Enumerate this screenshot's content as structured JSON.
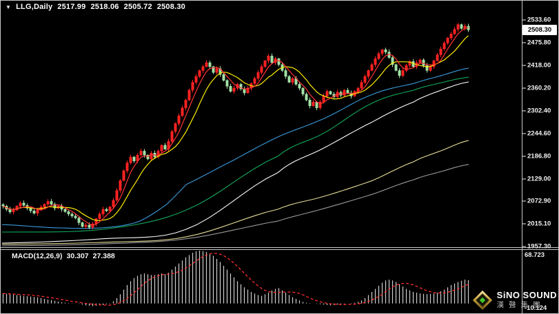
{
  "header": {
    "collapse_icon": "▼",
    "symbol_timeframe": "LLG,Daily"
  },
  "indicator_label": {
    "name": "MACD(12,26,9)",
    "main_value": "30.307",
    "signal_value": "27.388"
  },
  "price_axis": {
    "current_price": "2508.30",
    "labels": [
      "2533.60",
      "2475.80",
      "2418.00",
      "2360.20",
      "2302.40",
      "2244.60",
      "2186.80",
      "2129.00",
      "2072.90",
      "2015.10",
      "1957.30"
    ]
  },
  "macd_axis": {
    "max_label": "68.723",
    "min_label": "-10.124"
  },
  "logo": {
    "line1": "SiNO SOUND",
    "line2": "漢聲集團"
  },
  "colors": {
    "background": "#000000",
    "frame": "#c8c8c8",
    "bull_candle": "#ff2222",
    "bear_candle": "#a2e2a6",
    "ma5": "#ff3535",
    "ma10": "#ffee00",
    "ma_blue": "#3a9bdc",
    "ma_green": "#12aa5c",
    "ma_white": "#ffffff",
    "ma_khaki": "#e9dd96",
    "ma_gray": "#9a9a9a",
    "macd_hist": "#d0d0d0",
    "macd_signal": "#ff2d2d",
    "current_price_bg": "#ffffff"
  },
  "chart_data": {
    "type": "candlestick+macd",
    "symbol": "LLG",
    "timeframe": "Daily",
    "ohlc_header": {
      "open": "2517.99",
      "high": "2518.06",
      "low": "2505.72",
      "close": "2508.30"
    },
    "price_axis_ticks": [
      2533.6,
      2475.8,
      2418.0,
      2360.2,
      2302.4,
      2244.6,
      2186.8,
      2129.0,
      2072.9,
      2015.1,
      1957.3
    ],
    "price_range_visible": [
      1957.3,
      2533.6
    ],
    "macd_range_visible": [
      -10.124,
      68.723
    ],
    "macd_settings": "12,26,9",
    "closes": [
      2060,
      2052,
      2045,
      2050,
      2060,
      2068,
      2062,
      2055,
      2048,
      2042,
      2050,
      2058,
      2065,
      2072,
      2065,
      2055,
      2060,
      2052,
      2046,
      2040,
      2035,
      2030,
      2018,
      2008,
      2012,
      2006,
      2015,
      2028,
      2040,
      2052,
      2048,
      2058,
      2075,
      2100,
      2125,
      2150,
      2170,
      2185,
      2175,
      2190,
      2200,
      2190,
      2180,
      2195,
      2185,
      2200,
      2215,
      2205,
      2225,
      2250,
      2270,
      2290,
      2310,
      2330,
      2355,
      2375,
      2390,
      2405,
      2415,
      2425,
      2415,
      2400,
      2410,
      2395,
      2380,
      2365,
      2352,
      2360,
      2370,
      2358,
      2348,
      2360,
      2372,
      2385,
      2400,
      2415,
      2430,
      2442,
      2425,
      2435,
      2420,
      2405,
      2390,
      2375,
      2385,
      2370,
      2360,
      2345,
      2330,
      2315,
      2325,
      2310,
      2325,
      2340,
      2352,
      2345,
      2338,
      2350,
      2342,
      2355,
      2348,
      2340,
      2352,
      2360,
      2375,
      2390,
      2405,
      2420,
      2435,
      2448,
      2458,
      2452,
      2438,
      2420,
      2405,
      2392,
      2405,
      2418,
      2428,
      2415,
      2425,
      2432,
      2418,
      2405,
      2415,
      2430,
      2445,
      2460,
      2475,
      2488,
      2498,
      2510,
      2522,
      2512,
      2518,
      2508.3
    ],
    "macd_hist": [
      13,
      12.5,
      12,
      11.5,
      11,
      10.5,
      10,
      9.5,
      9,
      8.5,
      8,
      7,
      6,
      5,
      4.5,
      3.5,
      2.5,
      1.5,
      1,
      0.5,
      0.3,
      0.2,
      -0.5,
      -1.5,
      -2.5,
      -3,
      -3.5,
      -3,
      -2.5,
      -2,
      -1,
      0.5,
      3,
      7,
      12,
      18,
      24,
      29,
      33,
      36,
      38,
      39,
      38,
      37,
      37,
      38,
      39,
      38,
      40,
      44,
      48,
      52,
      56,
      60,
      63,
      66,
      68,
      68.7,
      68,
      67,
      65,
      62,
      58,
      54,
      49,
      44,
      39,
      34,
      29,
      25,
      21,
      18,
      15,
      13,
      11,
      10,
      12,
      14,
      17,
      19,
      20,
      17,
      14,
      11,
      8,
      6,
      4,
      2,
      1,
      0.5,
      0,
      -0.5,
      -1,
      -1.5,
      -2,
      -2.5,
      -2,
      -1.5,
      -1,
      -0.5,
      0,
      0.5,
      1,
      2,
      4,
      7,
      11,
      15,
      19,
      23,
      27,
      30,
      31,
      30,
      28,
      25,
      22,
      19,
      17,
      15,
      14,
      13,
      12.5,
      12,
      12.5,
      13,
      14,
      16,
      18,
      21,
      24,
      26,
      28,
      29.5,
      31,
      30.307
    ],
    "overlays": {
      "ma5": {
        "color": "#ff3535",
        "computed": "sma",
        "period": 5
      },
      "ma10": {
        "color": "#ffee00",
        "computed": "sma",
        "period": 10
      },
      "ma_blue": {
        "color": "#3a9bdc",
        "x": [
          3,
          80,
          150,
          200,
          240,
          270,
          340,
          403,
          470,
          540,
          600,
          640,
          680
        ],
        "price": [
          2013,
          2005,
          2005,
          2020,
          2062,
          2115,
          2178,
          2236,
          2283,
          2344,
          2372,
          2392,
          2411
        ]
      },
      "ma_green": {
        "color": "#12aa5c",
        "x": [
          3,
          150,
          270,
          403,
          470,
          540,
          600,
          640,
          680
        ],
        "price": [
          1994,
          2001,
          2050,
          2187,
          2246,
          2322,
          2355,
          2374,
          2388
        ]
      },
      "ma_white": {
        "color": "#ffffff",
        "x": [
          3,
          150,
          270,
          403,
          470,
          540,
          600,
          640,
          680
        ],
        "price": [
          1966,
          1977,
          2001,
          2145,
          2208,
          2274,
          2325,
          2355,
          2376
        ]
      },
      "ma_khaki": {
        "color": "#e9dd96",
        "x": [
          3,
          150,
          270,
          403,
          470,
          540,
          600,
          640,
          680
        ],
        "price": [
          1963,
          1968,
          1982,
          2052,
          2085,
          2125,
          2173,
          2201,
          2227
        ]
      },
      "ma_gray": {
        "color": "#9a9a9a",
        "x": [
          3,
          150,
          270,
          403,
          470,
          540,
          600,
          640,
          680
        ],
        "price": [
          1959,
          1964,
          1977,
          2022,
          2054,
          2090,
          2127,
          2148,
          2166
        ]
      }
    }
  }
}
